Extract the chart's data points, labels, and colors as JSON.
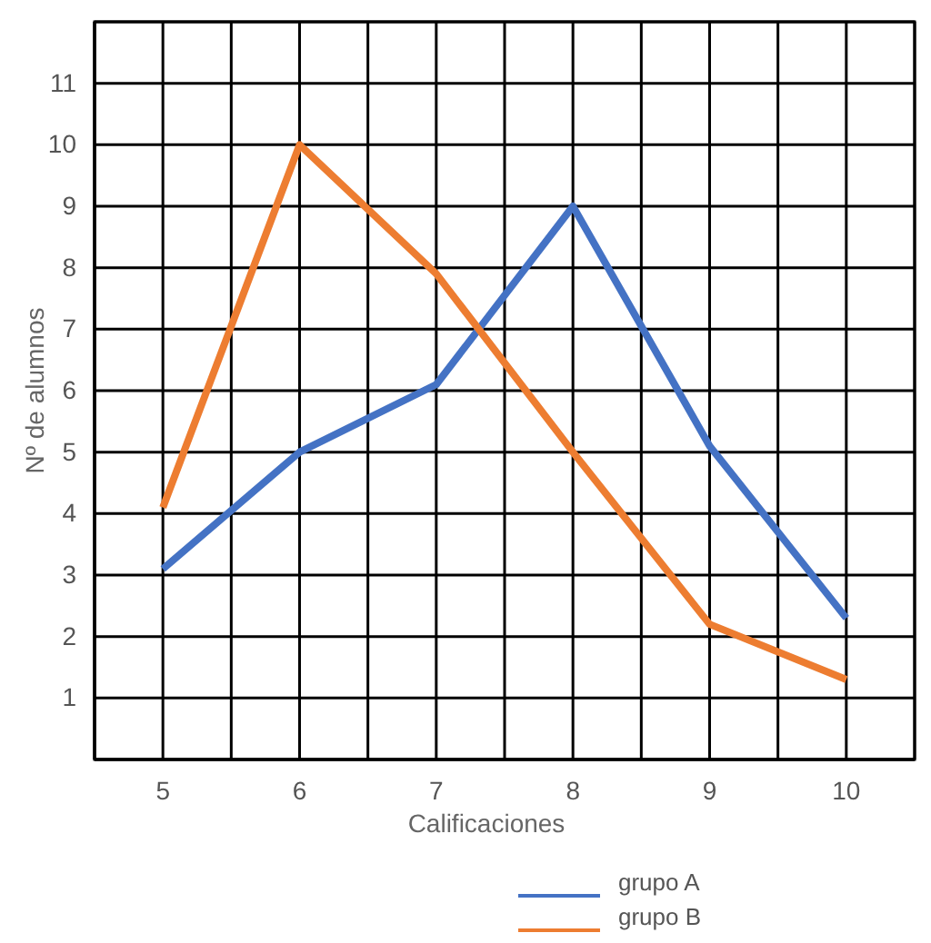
{
  "chart_data": {
    "type": "line",
    "xlabel": "Calificaciones",
    "ylabel": "Nº de alumnos",
    "x": [
      5,
      6,
      7,
      8,
      9,
      10
    ],
    "series": [
      {
        "name": "grupo A",
        "color": "#4472c4",
        "values": [
          3.1,
          5,
          6.1,
          9,
          5.1,
          2.3
        ]
      },
      {
        "name": "grupo B",
        "color": "#ed7d31",
        "values": [
          4.1,
          10,
          7.9,
          5,
          2.2,
          1.3
        ]
      }
    ],
    "xlim": [
      4.5,
      10.5
    ],
    "xticks": [
      {
        "value": 4.5,
        "label": null
      },
      5,
      {
        "value": 5.5,
        "label": null
      },
      6,
      {
        "value": 6.5,
        "label": null
      },
      7,
      {
        "value": 7.5,
        "label": null
      },
      8,
      {
        "value": 8.5,
        "label": null
      },
      9,
      {
        "value": 9.5,
        "label": null
      },
      10,
      {
        "value": 10.5,
        "label": null
      }
    ],
    "ylim": [
      0,
      12
    ],
    "yticks": [
      {
        "value": 0,
        "label": null
      },
      1,
      2,
      3,
      4,
      5,
      6,
      7,
      8,
      9,
      10,
      11,
      {
        "value": 12,
        "label": null
      }
    ],
    "grid": true,
    "legend": "bottom",
    "line_style": "solid"
  }
}
